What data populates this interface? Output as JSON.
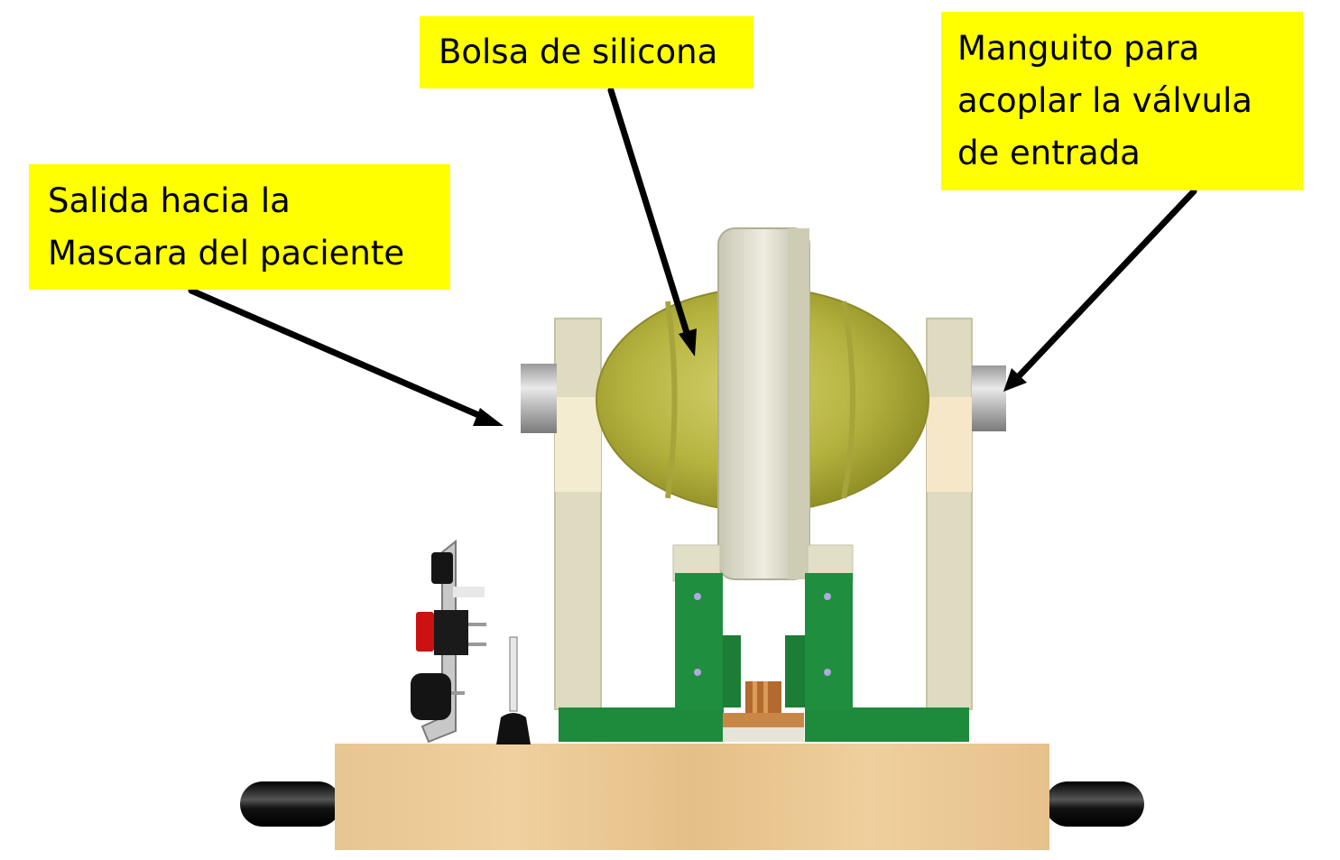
{
  "labels": {
    "bolsa": "Bolsa de silicona",
    "manguito": "Manguito para\nacoplar la válvula\nde entrada",
    "salida": "Salida hacia la\nMascara del paciente"
  },
  "colors": {
    "label_bg": "#ffff00",
    "arrow": "#000000",
    "bag": "#b4b23c",
    "frame": "#e0ddc2",
    "green_bracket": "#1e8a3c",
    "wood": "#e8c38f",
    "switch_red": "#cc1111",
    "knob": "#111111"
  },
  "icons": [
    "arrow-icon",
    "switch-icon",
    "knob-icon",
    "coupling-icon"
  ]
}
